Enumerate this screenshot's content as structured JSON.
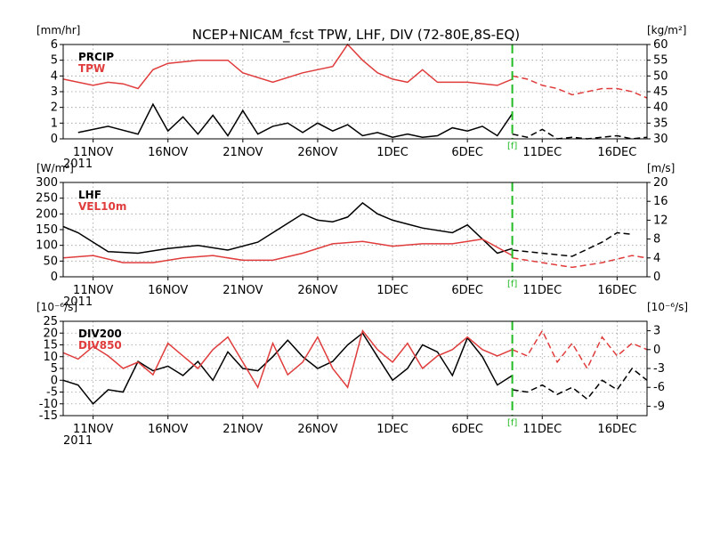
{
  "title": "NCEP+NICAM_fcst TPW, LHF, DIV (72-80E,8S-EQ)",
  "colors": {
    "black_series": "#000000",
    "red_series": "#e03c3c",
    "forecast_line": "#22bb22",
    "grid": "#9a9a9a"
  },
  "forecast_marker": {
    "date": "2011-12-09",
    "label": "[f]"
  },
  "chart_data": [
    {
      "type": "line",
      "panel": "top",
      "left_unit": "[mm/hr]",
      "right_unit": "[kg/m²]",
      "left_ylim": [
        0,
        6
      ],
      "left_ticks": [
        "0",
        "1",
        "2",
        "3",
        "4",
        "5",
        "6"
      ],
      "right_ylim": [
        30,
        60
      ],
      "right_ticks": [
        "30",
        "35",
        "40",
        "45",
        "50",
        "55",
        "60"
      ],
      "x_tick_labels": [
        "11NOV",
        "16NOV",
        "21NOV",
        "26NOV",
        "1DEC",
        "6DEC",
        "11DEC",
        "16DEC"
      ],
      "x_year_label": "2011",
      "x_start": "2011-11-09",
      "x_end": "2011-12-18",
      "grid": true,
      "legend_position": "top-left",
      "series": [
        {
          "name": "PRCIP",
          "axis": "left",
          "color": "#000000",
          "x": [
            "2011-11-10",
            "2011-11-12",
            "2011-11-14",
            "2011-11-15",
            "2011-11-16",
            "2011-11-17",
            "2011-11-18",
            "2011-11-19",
            "2011-11-20",
            "2011-11-21",
            "2011-11-22",
            "2011-11-23",
            "2011-11-24",
            "2011-11-25",
            "2011-11-26",
            "2011-11-27",
            "2011-11-28",
            "2011-11-29",
            "2011-11-30",
            "2011-12-01",
            "2011-12-02",
            "2011-12-03",
            "2011-12-04",
            "2011-12-05",
            "2011-12-06",
            "2011-12-07",
            "2011-12-08",
            "2011-12-09"
          ],
          "y": [
            0.4,
            0.8,
            0.3,
            2.2,
            0.5,
            1.4,
            0.3,
            1.5,
            0.2,
            1.8,
            0.3,
            0.8,
            1.0,
            0.4,
            1.0,
            0.5,
            0.9,
            0.2,
            0.4,
            0.1,
            0.3,
            0.1,
            0.2,
            0.7,
            0.5,
            0.8,
            0.2,
            1.6
          ]
        },
        {
          "name": "PRCIP fcst",
          "axis": "left",
          "color": "#000000",
          "dashed": true,
          "x": [
            "2011-12-09",
            "2011-12-10",
            "2011-12-11",
            "2011-12-12",
            "2011-12-13",
            "2011-12-14",
            "2011-12-15",
            "2011-12-16",
            "2011-12-17",
            "2011-12-18"
          ],
          "y": [
            0.3,
            0.1,
            0.6,
            0.0,
            0.1,
            0.0,
            0.1,
            0.2,
            0.0,
            0.1
          ]
        },
        {
          "name": "TPW",
          "axis": "right",
          "color": "#e03c3c",
          "x": [
            "2011-11-09",
            "2011-11-10",
            "2011-11-11",
            "2011-11-12",
            "2011-11-13",
            "2011-11-14",
            "2011-11-15",
            "2011-11-16",
            "2011-11-18",
            "2011-11-20",
            "2011-11-21",
            "2011-11-23",
            "2011-11-25",
            "2011-11-27",
            "2011-11-28",
            "2011-11-29",
            "2011-11-30",
            "2011-12-01",
            "2011-12-02",
            "2011-12-03",
            "2011-12-04",
            "2011-12-06",
            "2011-12-08",
            "2011-12-09"
          ],
          "y": [
            49,
            48,
            47,
            48,
            47.5,
            46,
            52,
            54,
            55,
            55,
            51,
            48,
            51,
            53,
            60,
            55,
            51,
            49,
            48,
            52,
            48,
            48,
            47,
            49
          ]
        },
        {
          "name": "TPW fcst",
          "axis": "right",
          "color": "#e03c3c",
          "dashed": true,
          "x": [
            "2011-12-09",
            "2011-12-10",
            "2011-12-11",
            "2011-12-12",
            "2011-12-13",
            "2011-12-14",
            "2011-12-15",
            "2011-12-16",
            "2011-12-17",
            "2011-12-18"
          ],
          "y": [
            50,
            49,
            47,
            46,
            44,
            45,
            46,
            46,
            45,
            43
          ]
        }
      ]
    },
    {
      "type": "line",
      "panel": "middle",
      "left_unit": "[W/m²]",
      "right_unit": "[m/s]",
      "left_ylim": [
        0,
        300
      ],
      "left_ticks": [
        "0",
        "50",
        "100",
        "150",
        "200",
        "250",
        "300"
      ],
      "right_ylim": [
        0,
        20
      ],
      "right_ticks": [
        "0",
        "4",
        "8",
        "12",
        "16",
        "20"
      ],
      "x_tick_labels": [
        "11NOV",
        "16NOV",
        "21NOV",
        "26NOV",
        "1DEC",
        "6DEC",
        "11DEC",
        "16DEC"
      ],
      "x_year_label": "2011",
      "x_start": "2011-11-09",
      "x_end": "2011-12-18",
      "grid": true,
      "legend_position": "top-left",
      "series": [
        {
          "name": "LHF",
          "axis": "left",
          "color": "#000000",
          "x": [
            "2011-11-09",
            "2011-11-10",
            "2011-11-12",
            "2011-11-14",
            "2011-11-16",
            "2011-11-18",
            "2011-11-20",
            "2011-11-22",
            "2011-11-24",
            "2011-11-25",
            "2011-11-26",
            "2011-11-27",
            "2011-11-28",
            "2011-11-29",
            "2011-11-30",
            "2011-12-01",
            "2011-12-03",
            "2011-12-05",
            "2011-12-06",
            "2011-12-08",
            "2011-12-09"
          ],
          "y": [
            160,
            140,
            80,
            75,
            90,
            100,
            85,
            110,
            170,
            200,
            180,
            175,
            190,
            235,
            200,
            180,
            155,
            140,
            165,
            75,
            90
          ]
        },
        {
          "name": "LHF fcst",
          "axis": "left",
          "color": "#000000",
          "dashed": true,
          "x": [
            "2011-12-09",
            "2011-12-11",
            "2011-12-13",
            "2011-12-15",
            "2011-12-16",
            "2011-12-17"
          ],
          "y": [
            85,
            75,
            65,
            110,
            140,
            135
          ]
        },
        {
          "name": "VEL10m",
          "axis": "right",
          "color": "#e03c3c",
          "x": [
            "2011-11-09",
            "2011-11-11",
            "2011-11-13",
            "2011-11-15",
            "2011-11-17",
            "2011-11-19",
            "2011-11-21",
            "2011-11-23",
            "2011-11-25",
            "2011-11-27",
            "2011-11-29",
            "2011-12-01",
            "2011-12-03",
            "2011-12-05",
            "2011-12-07",
            "2011-12-09"
          ],
          "y": [
            4,
            4.5,
            3,
            3,
            4,
            4.5,
            3.5,
            3.5,
            5,
            7,
            7.5,
            6.5,
            7,
            7,
            8,
            4.5
          ]
        },
        {
          "name": "VEL10m fcst",
          "axis": "right",
          "color": "#e03c3c",
          "dashed": true,
          "x": [
            "2011-12-09",
            "2011-12-11",
            "2011-12-13",
            "2011-12-15",
            "2011-12-17",
            "2011-12-18"
          ],
          "y": [
            4,
            3,
            2,
            3,
            4.5,
            4
          ]
        }
      ]
    },
    {
      "type": "line",
      "panel": "bottom",
      "left_unit": "[10⁻⁶/s]",
      "right_unit": "[10⁻⁶/s]",
      "left_ylim": [
        -15,
        25
      ],
      "left_ticks": [
        "-15",
        "-10",
        "-5",
        "0",
        "5",
        "10",
        "15",
        "20",
        "25"
      ],
      "right_ylim": [
        -10.5,
        4.5
      ],
      "right_ticks": [
        "-9",
        "-6",
        "-3",
        "0",
        "3"
      ],
      "x_tick_labels": [
        "11NOV",
        "16NOV",
        "21NOV",
        "26NOV",
        "1DEC",
        "6DEC",
        "11DEC",
        "16DEC"
      ],
      "x_year_label": "2011",
      "x_start": "2011-11-09",
      "x_end": "2011-12-18",
      "grid": true,
      "legend_position": "top-left",
      "series": [
        {
          "name": "DIV200",
          "axis": "left",
          "color": "#000000",
          "x": [
            "2011-11-09",
            "2011-11-10",
            "2011-11-11",
            "2011-11-12",
            "2011-11-13",
            "2011-11-14",
            "2011-11-15",
            "2011-11-16",
            "2011-11-17",
            "2011-11-18",
            "2011-11-19",
            "2011-11-20",
            "2011-11-21",
            "2011-11-22",
            "2011-11-23",
            "2011-11-24",
            "2011-11-25",
            "2011-11-26",
            "2011-11-27",
            "2011-11-28",
            "2011-11-29",
            "2011-11-30",
            "2011-12-01",
            "2011-12-02",
            "2011-12-03",
            "2011-12-04",
            "2011-12-05",
            "2011-12-06",
            "2011-12-07",
            "2011-12-08",
            "2011-12-09"
          ],
          "y": [
            0,
            -2,
            -10,
            -4,
            -5,
            8,
            4,
            6,
            2,
            8,
            0,
            12,
            5,
            4,
            10,
            17,
            10,
            5,
            8,
            15,
            20,
            10,
            0,
            5,
            15,
            12,
            2,
            18,
            10,
            -2,
            2
          ]
        },
        {
          "name": "DIV200 fcst",
          "axis": "left",
          "color": "#000000",
          "dashed": true,
          "x": [
            "2011-12-09",
            "2011-12-10",
            "2011-12-11",
            "2011-12-12",
            "2011-12-13",
            "2011-12-14",
            "2011-12-15",
            "2011-12-16",
            "2011-12-17",
            "2011-12-18"
          ],
          "y": [
            -4,
            -5,
            -2,
            -6,
            -3,
            -8,
            0,
            -4,
            5,
            0
          ]
        },
        {
          "name": "DIV850",
          "axis": "right",
          "color": "#e03c3c",
          "x": [
            "2011-11-09",
            "2011-11-10",
            "2011-11-11",
            "2011-11-12",
            "2011-11-13",
            "2011-11-14",
            "2011-11-15",
            "2011-11-16",
            "2011-11-17",
            "2011-11-18",
            "2011-11-19",
            "2011-11-20",
            "2011-11-21",
            "2011-11-22",
            "2011-11-23",
            "2011-11-24",
            "2011-11-25",
            "2011-11-26",
            "2011-11-27",
            "2011-11-28",
            "2011-11-29",
            "2011-11-30",
            "2011-12-01",
            "2011-12-02",
            "2011-12-03",
            "2011-12-04",
            "2011-12-05",
            "2011-12-06",
            "2011-12-07",
            "2011-12-08",
            "2011-12-09"
          ],
          "y": [
            -0.5,
            -1.5,
            0.5,
            -1,
            -3,
            -2,
            -4,
            1,
            -1,
            -3,
            0,
            2,
            -2,
            -6,
            1,
            -4,
            -2,
            2,
            -3,
            -6,
            3,
            0,
            -2,
            1,
            -3,
            -1,
            0,
            2,
            0,
            -1,
            0
          ]
        },
        {
          "name": "DIV850 fcst",
          "axis": "right",
          "color": "#e03c3c",
          "dashed": true,
          "x": [
            "2011-12-09",
            "2011-12-10",
            "2011-12-11",
            "2011-12-12",
            "2011-12-13",
            "2011-12-14",
            "2011-12-15",
            "2011-12-16",
            "2011-12-17",
            "2011-12-18"
          ],
          "y": [
            0,
            -1,
            3,
            -2,
            1,
            -3,
            2,
            -1,
            1,
            0
          ]
        }
      ]
    }
  ]
}
